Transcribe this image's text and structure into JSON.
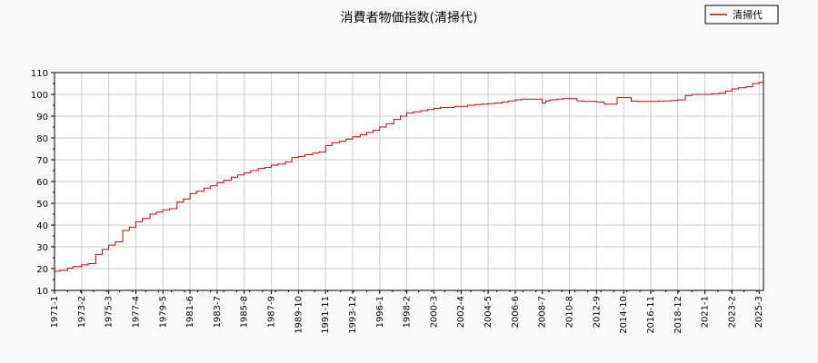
{
  "chart_data": {
    "type": "line",
    "title": "消費者物価指数(清掃代)",
    "xlabel": "",
    "ylabel": "",
    "ylim": [
      10,
      110
    ],
    "yticks": [
      10,
      20,
      30,
      40,
      50,
      60,
      70,
      80,
      90,
      100,
      110
    ],
    "x_tick_labels": [
      "1971-1",
      "1973-2",
      "1975-3",
      "1977-4",
      "1979-5",
      "1981-6",
      "1983-7",
      "1985-8",
      "1987-9",
      "1989-10",
      "1991-11",
      "1993-12",
      "1996-1",
      "1998-2",
      "2000-3",
      "2002-4",
      "2004-5",
      "2006-6",
      "2008-7",
      "2010-8",
      "2012-9",
      "2014-10",
      "2016-11",
      "2018-12",
      "2021-1",
      "2023-2",
      "2025-3"
    ],
    "x_range": [
      "1971-1",
      "2025-7"
    ],
    "grid": true,
    "legend_position": "top-right",
    "series": [
      {
        "name": "清掃代",
        "color": "#cc0000",
        "points": [
          [
            "1971-1",
            18.8
          ],
          [
            "1971-6",
            19.2
          ],
          [
            "1972-1",
            20.2
          ],
          [
            "1972-6",
            20.9
          ],
          [
            "1973-2",
            21.7
          ],
          [
            "1973-8",
            22.3
          ],
          [
            "1974-3",
            26.5
          ],
          [
            "1974-9",
            28.8
          ],
          [
            "1975-3",
            30.8
          ],
          [
            "1975-9",
            32.3
          ],
          [
            "1976-4",
            37.5
          ],
          [
            "1976-10",
            39.0
          ],
          [
            "1977-4",
            41.5
          ],
          [
            "1977-10",
            43.0
          ],
          [
            "1978-5",
            45.0
          ],
          [
            "1978-11",
            46.0
          ],
          [
            "1979-5",
            47.0
          ],
          [
            "1979-11",
            47.5
          ],
          [
            "1980-6",
            50.5
          ],
          [
            "1980-12",
            52.0
          ],
          [
            "1981-6",
            54.5
          ],
          [
            "1981-12",
            55.5
          ],
          [
            "1982-7",
            57.0
          ],
          [
            "1983-1",
            58.0
          ],
          [
            "1983-7",
            59.5
          ],
          [
            "1984-1",
            60.5
          ],
          [
            "1984-8",
            62.0
          ],
          [
            "1985-2",
            63.0
          ],
          [
            "1985-8",
            64.0
          ],
          [
            "1986-2",
            65.0
          ],
          [
            "1986-9",
            66.0
          ],
          [
            "1987-3",
            66.5
          ],
          [
            "1987-9",
            67.5
          ],
          [
            "1988-3",
            68.0
          ],
          [
            "1988-10",
            69.0
          ],
          [
            "1989-4",
            71.0
          ],
          [
            "1989-10",
            71.5
          ],
          [
            "1990-4",
            72.3
          ],
          [
            "1990-11",
            73.0
          ],
          [
            "1991-5",
            73.5
          ],
          [
            "1991-11",
            76.5
          ],
          [
            "1992-5",
            77.8
          ],
          [
            "1992-12",
            78.5
          ],
          [
            "1993-6",
            79.5
          ],
          [
            "1993-12",
            80.5
          ],
          [
            "1994-7",
            81.5
          ],
          [
            "1995-1",
            82.5
          ],
          [
            "1995-7",
            83.5
          ],
          [
            "1996-1",
            85.0
          ],
          [
            "1996-7",
            86.5
          ],
          [
            "1997-2",
            88.5
          ],
          [
            "1997-8",
            90.0
          ],
          [
            "1998-2",
            91.5
          ],
          [
            "1998-8",
            92.0
          ],
          [
            "1999-3",
            92.5
          ],
          [
            "1999-9",
            93.0
          ],
          [
            "2000-3",
            93.5
          ],
          [
            "2000-9",
            94.0
          ],
          [
            "2001-4",
            94.0
          ],
          [
            "2001-10",
            94.5
          ],
          [
            "2002-4",
            94.5
          ],
          [
            "2002-10",
            95.0
          ],
          [
            "2003-5",
            95.3
          ],
          [
            "2003-11",
            95.5
          ],
          [
            "2004-5",
            95.8
          ],
          [
            "2004-11",
            96.0
          ],
          [
            "2005-6",
            96.5
          ],
          [
            "2005-12",
            97.0
          ],
          [
            "2006-6",
            97.5
          ],
          [
            "2006-12",
            97.8
          ],
          [
            "2007-7",
            97.8
          ],
          [
            "2008-1",
            97.8
          ],
          [
            "2008-7",
            96.0
          ],
          [
            "2008-10",
            97.0
          ],
          [
            "2009-2",
            97.5
          ],
          [
            "2009-8",
            97.8
          ],
          [
            "2010-2",
            98.0
          ],
          [
            "2010-8",
            98.0
          ],
          [
            "2011-3",
            97.0
          ],
          [
            "2011-9",
            96.8
          ],
          [
            "2012-3",
            96.8
          ],
          [
            "2012-9",
            96.5
          ],
          [
            "2013-4",
            95.5
          ],
          [
            "2013-10",
            95.5
          ],
          [
            "2014-4",
            98.5
          ],
          [
            "2014-10",
            98.5
          ],
          [
            "2015-5",
            97.0
          ],
          [
            "2015-11",
            96.8
          ],
          [
            "2016-5",
            96.8
          ],
          [
            "2016-11",
            96.8
          ],
          [
            "2017-6",
            97.0
          ],
          [
            "2017-12",
            97.0
          ],
          [
            "2018-6",
            97.2
          ],
          [
            "2018-12",
            97.5
          ],
          [
            "2019-7",
            99.5
          ],
          [
            "2020-1",
            100.0
          ],
          [
            "2020-7",
            100.0
          ],
          [
            "2021-1",
            100.0
          ],
          [
            "2021-7",
            100.3
          ],
          [
            "2022-2",
            100.5
          ],
          [
            "2022-8",
            101.5
          ],
          [
            "2023-2",
            102.5
          ],
          [
            "2023-8",
            103.0
          ],
          [
            "2024-3",
            103.5
          ],
          [
            "2024-9",
            105.0
          ],
          [
            "2025-3",
            105.5
          ],
          [
            "2025-7",
            106.0
          ]
        ]
      }
    ]
  }
}
